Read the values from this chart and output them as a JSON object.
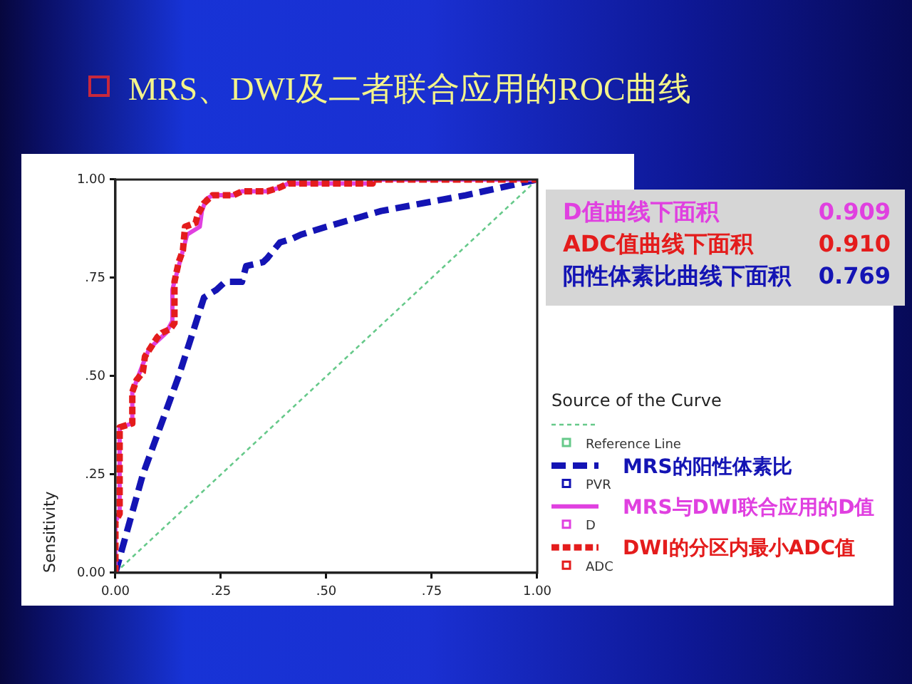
{
  "chart_data": {
    "type": "line",
    "title": "MRS、DWI及二者联合应用的ROC曲线",
    "ylabel": "Sensitivity",
    "legend_title": "Source of the Curve",
    "legend": "right",
    "xlim": [
      0,
      1
    ],
    "ylim": [
      0,
      1
    ],
    "xticks": [
      {
        "value": 0,
        "label": "0.00"
      },
      {
        "value": 0.25,
        "label": ".25"
      },
      {
        "value": 0.5,
        "label": ".50"
      },
      {
        "value": 0.75,
        "label": ".75"
      },
      {
        "value": 1,
        "label": "1.00"
      }
    ],
    "yticks": [
      {
        "value": 0,
        "label": "0.00"
      },
      {
        "value": 0.25,
        "label": ".25"
      },
      {
        "value": 0.5,
        "label": ".50"
      },
      {
        "value": 0.75,
        "label": ".75"
      },
      {
        "value": 1,
        "label": "1.00"
      }
    ],
    "series": [
      {
        "name": "Reference Line",
        "color": "#66c98a",
        "line_style": "dotted",
        "x": [
          0,
          1
        ],
        "values": [
          0,
          1
        ]
      },
      {
        "name": "PVR",
        "color": "#1414b4",
        "line_style": "dashed",
        "x": [
          0,
          0.065,
          0.15,
          0.21,
          0.24,
          0.26,
          0.3,
          0.31,
          0.35,
          0.36,
          0.39,
          0.42,
          0.44,
          0.5,
          0.63,
          0.83,
          1
        ],
        "values": [
          0,
          0.25,
          0.5,
          0.7,
          0.72,
          0.74,
          0.74,
          0.78,
          0.79,
          0.8,
          0.84,
          0.85,
          0.86,
          0.88,
          0.92,
          0.96,
          1
        ]
      },
      {
        "name": "D",
        "color": "#e040e0",
        "line_style": "solid",
        "x": [
          0,
          0,
          0.01,
          0.01,
          0.04,
          0.04,
          0.065,
          0.08,
          0.12,
          0.135,
          0.135,
          0.15,
          0.16,
          0.17,
          0.2,
          0.205,
          0.215,
          0.23,
          0.28,
          0.3,
          0.36,
          0.39,
          0.41,
          0.61,
          0.61,
          1
        ],
        "values": [
          0,
          0.13,
          0.15,
          0.37,
          0.38,
          0.46,
          0.53,
          0.57,
          0.61,
          0.64,
          0.72,
          0.78,
          0.82,
          0.86,
          0.88,
          0.92,
          0.95,
          0.96,
          0.96,
          0.97,
          0.97,
          0.98,
          0.99,
          0.99,
          1,
          1
        ]
      },
      {
        "name": "ADC",
        "color": "#e41c1c",
        "line_style": "dotted",
        "x": [
          0,
          0,
          0.01,
          0.01,
          0.04,
          0.04,
          0.05,
          0.065,
          0.07,
          0.1,
          0.11,
          0.13,
          0.14,
          0.14,
          0.15,
          0.16,
          0.165,
          0.19,
          0.195,
          0.21,
          0.23,
          0.28,
          0.3,
          0.36,
          0.39,
          0.41,
          0.61,
          0.61,
          1
        ],
        "values": [
          0,
          0.13,
          0.15,
          0.37,
          0.38,
          0.46,
          0.49,
          0.51,
          0.55,
          0.6,
          0.61,
          0.62,
          0.635,
          0.74,
          0.79,
          0.82,
          0.88,
          0.89,
          0.91,
          0.94,
          0.96,
          0.96,
          0.97,
          0.97,
          0.98,
          0.99,
          0.99,
          1,
          1
        ]
      }
    ],
    "annotations": [
      "MRS的阳性体素比",
      "MRS与DWI联合应用的D值",
      "DWI的分区内最小ADC值",
      "D值曲线下面积 0.909",
      "ADC值曲线下面积 0.910",
      "阳性体素比曲线下面积 0.769"
    ]
  }
}
